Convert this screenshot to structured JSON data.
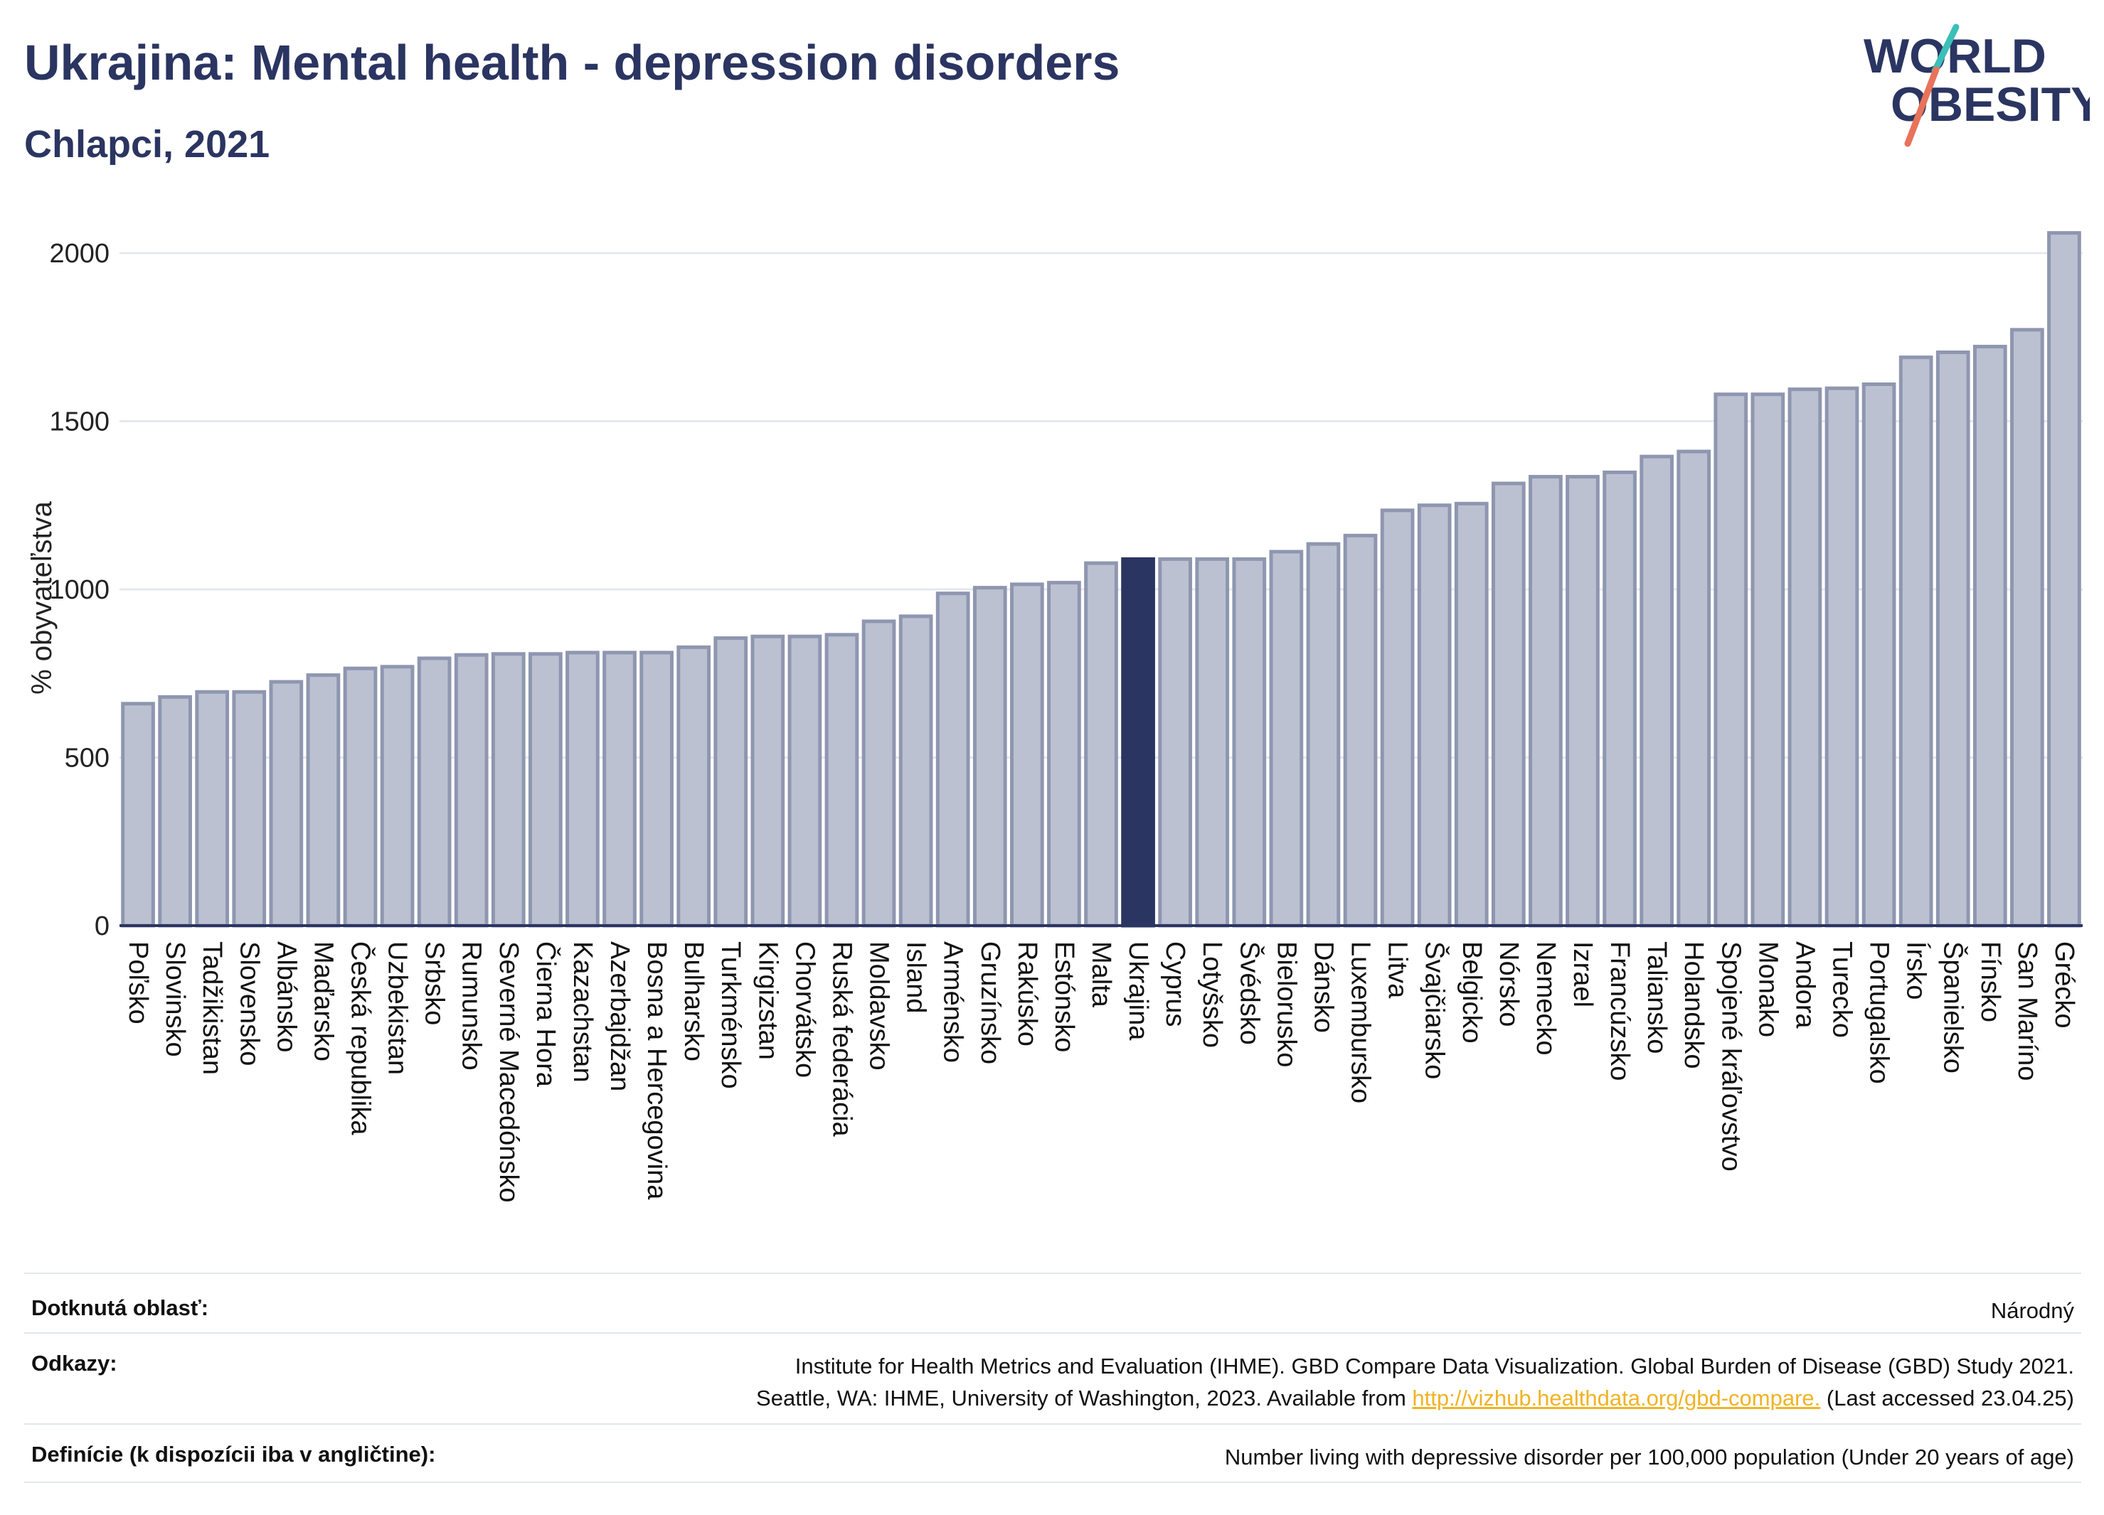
{
  "header": {
    "title": "Ukrajina: Mental health - depression disorders",
    "subtitle": "Chlapci, 2021"
  },
  "logo": {
    "line1": "WORLD",
    "line2": "OBESITY",
    "accent_teal": "#3bbfb8",
    "accent_red": "#e8735a"
  },
  "colors": {
    "bar": "#bcc1d1",
    "bar_stroke": "#8f96b0",
    "highlight": "#2b3561",
    "grid": "#e6e8ee",
    "axis": "#2b3561"
  },
  "chart_data": {
    "type": "bar",
    "ylabel": "% obyvateľstva",
    "ylim": [
      0,
      2100
    ],
    "yticks": [
      0,
      500,
      1000,
      1500,
      2000
    ],
    "grid": true,
    "highlight": "Ukrajina",
    "categories": [
      "Poľsko",
      "Slovinsko",
      "Tadžikistan",
      "Slovensko",
      "Albánsko",
      "Maďarsko",
      "Česká republika",
      "Uzbekistan",
      "Srbsko",
      "Rumunsko",
      "Severné Macedónsko",
      "Čierna Hora",
      "Kazachstan",
      "Azerbajdžan",
      "Bosna a Hercegovina",
      "Bulharsko",
      "Turkménsko",
      "Kirgizstan",
      "Chorvátsko",
      "Ruská federácia",
      "Moldavsko",
      "Island",
      "Arménsko",
      "Gruzínsko",
      "Rakúsko",
      "Estónsko",
      "Malta",
      "Ukrajina",
      "Cyprus",
      "Lotyšsko",
      "Švédsko",
      "Bielorusko",
      "Dánsko",
      "Luxembursko",
      "Litva",
      "Švajčiarsko",
      "Belgicko",
      "Nórsko",
      "Nemecko",
      "Izrael",
      "Francúzsko",
      "Taliansko",
      "Holandsko",
      "Spojené kráľovstvo",
      "Monako",
      "Andora",
      "Turecko",
      "Portugalsko",
      "Írsko",
      "Španielsko",
      "Fínsko",
      "San Maríno",
      "Grécko"
    ],
    "values": [
      660,
      680,
      695,
      695,
      725,
      745,
      765,
      770,
      795,
      805,
      808,
      808,
      812,
      812,
      812,
      828,
      855,
      860,
      860,
      865,
      905,
      920,
      988,
      1005,
      1015,
      1020,
      1078,
      1090,
      1090,
      1090,
      1090,
      1112,
      1135,
      1160,
      1235,
      1250,
      1255,
      1315,
      1335,
      1335,
      1348,
      1395,
      1410,
      1580,
      1580,
      1595,
      1598,
      1610,
      1690,
      1705,
      1722,
      1772,
      2060
    ]
  },
  "footer": {
    "area_label": "Dotknutá oblasť:",
    "area_value": "Národný",
    "refs_label": "Odkazy:",
    "refs_line1": "Institute for Health Metrics and Evaluation (IHME). GBD Compare Data Visualization. Global Burden of Disease (GBD) Study 2021.",
    "refs_line2_pre": "Seattle, WA: IHME, University of Washington, 2023. Available from ",
    "refs_link": "http://vizhub.healthdata.org/gbd-compare.",
    "refs_line2_post": " (Last accessed 23.04.25)",
    "def_label": "Definície (k dispozícii iba v angličtine):",
    "def_value": "Number living with depressive disorder per 100,000 population (Under 20 years of age)"
  }
}
